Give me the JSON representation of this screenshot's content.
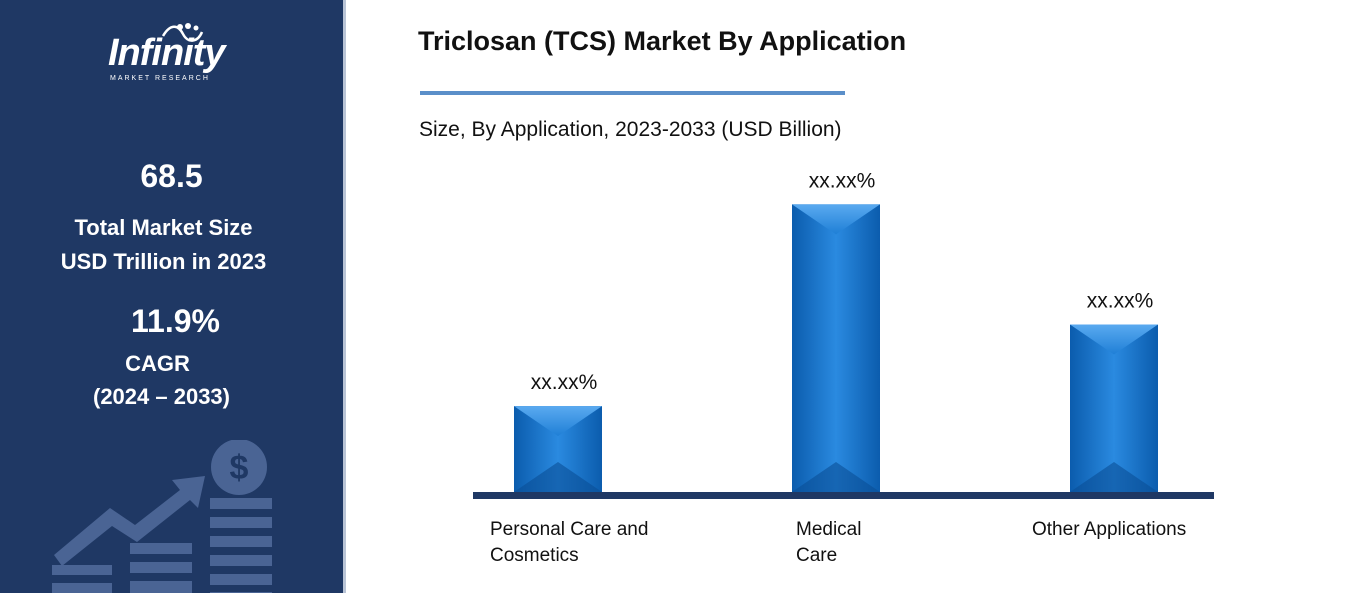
{
  "sidebar": {
    "logo_word": "Infinity",
    "logo_sub": "MARKET RESEARCH",
    "market_size_value": "68.5",
    "market_size_label_1": "Total Market Size",
    "market_size_label_2": "USD Trillion in 2023",
    "cagr_value": "11.9%",
    "cagr_label": "CAGR",
    "cagr_period": "(2024 – 2033)",
    "dollar_symbol": "$"
  },
  "colors": {
    "sidebar_bg": "#1f3864",
    "bar_main": "#1f7fd6",
    "bar_dark": "#0b5cad",
    "axis": "#1f3864",
    "title_rule": "#5b8fc9"
  },
  "chart_data": {
    "type": "bar",
    "title": "Triclosan (TCS) Market By Application",
    "subtitle": "Size, By Application, 2023-2033 (USD Billion)",
    "categories": [
      [
        "Personal Care and",
        "Cosmetics"
      ],
      [
        "Medical",
        "Care"
      ],
      [
        "Other Applications"
      ]
    ],
    "values": [
      20,
      67,
      39
    ],
    "data_labels": [
      "xx.xx%",
      "xx.xx%",
      "xx.xx%"
    ],
    "ylim": [
      0,
      75
    ],
    "grid": false,
    "legend": "none"
  }
}
